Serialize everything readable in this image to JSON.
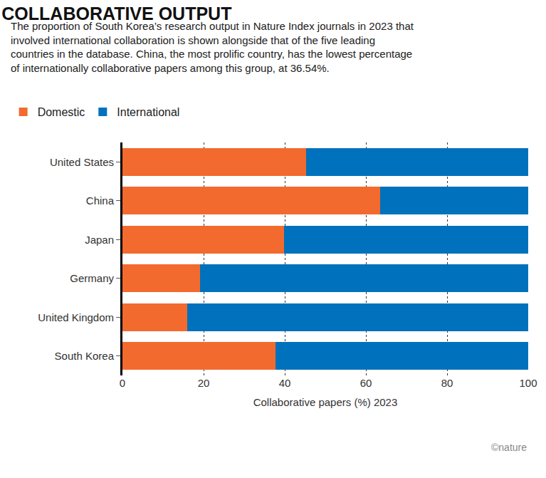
{
  "chart_data": {
    "type": "bar",
    "title": "COLLABORATIVE OUTPUT",
    "subtitle": "The proportion of South Korea’s research output in Nature Index journals in 2023 that involved international collaboration is shown alongside that of the five leading countries in the database. China, the most prolific country, has the lowest percentage of internationally collaborative papers among this group, at 36.54%.",
    "categories": [
      "United States",
      "China",
      "Japan",
      "Germany",
      "United Kingdom",
      "South Korea"
    ],
    "series": [
      {
        "name": "Domestic",
        "color": "#f26a2e",
        "values": [
          45.3,
          63.46,
          39.9,
          19.2,
          16.0,
          37.8
        ]
      },
      {
        "name": "International",
        "color": "#0071bc",
        "values": [
          54.7,
          36.54,
          60.1,
          80.8,
          84.0,
          62.2
        ]
      }
    ],
    "xlabel": "Collaborative papers (%) 2023",
    "xlim": [
      0,
      100
    ],
    "xticks": [
      0,
      20,
      40,
      60,
      80,
      100
    ],
    "grid": true,
    "orientation": "horizontal",
    "stacked": true,
    "legend": "top-left",
    "annotations": [
      "©nature"
    ]
  }
}
